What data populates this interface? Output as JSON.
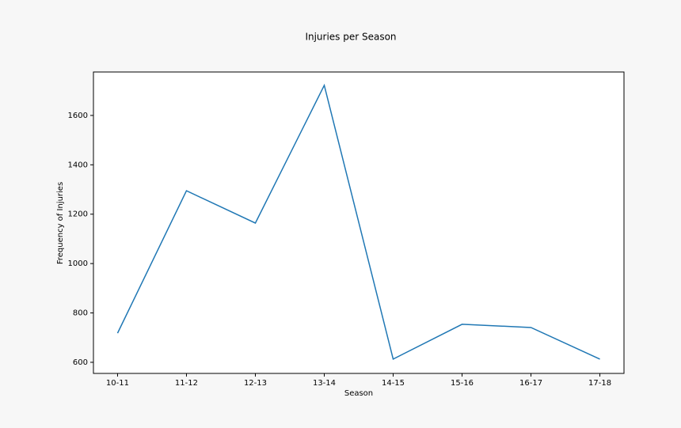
{
  "chart_data": {
    "type": "line",
    "title": "Injuries per Season",
    "x_label": "Season",
    "y_label": "Frequency of Injuries",
    "categories": [
      "10-11",
      "11-12",
      "12-13",
      "13-14",
      "14-15",
      "15-16",
      "16-17",
      "17-18"
    ],
    "series": [
      {
        "name": "Injuries",
        "color": "#1f77b4",
        "values": [
          718,
          1295,
          1164,
          1722,
          613,
          754,
          741,
          613
        ]
      }
    ],
    "ylim": [
      555,
      1776
    ],
    "yticks": [
      600,
      800,
      1000,
      1200,
      1400,
      1600
    ],
    "grid": false
  }
}
